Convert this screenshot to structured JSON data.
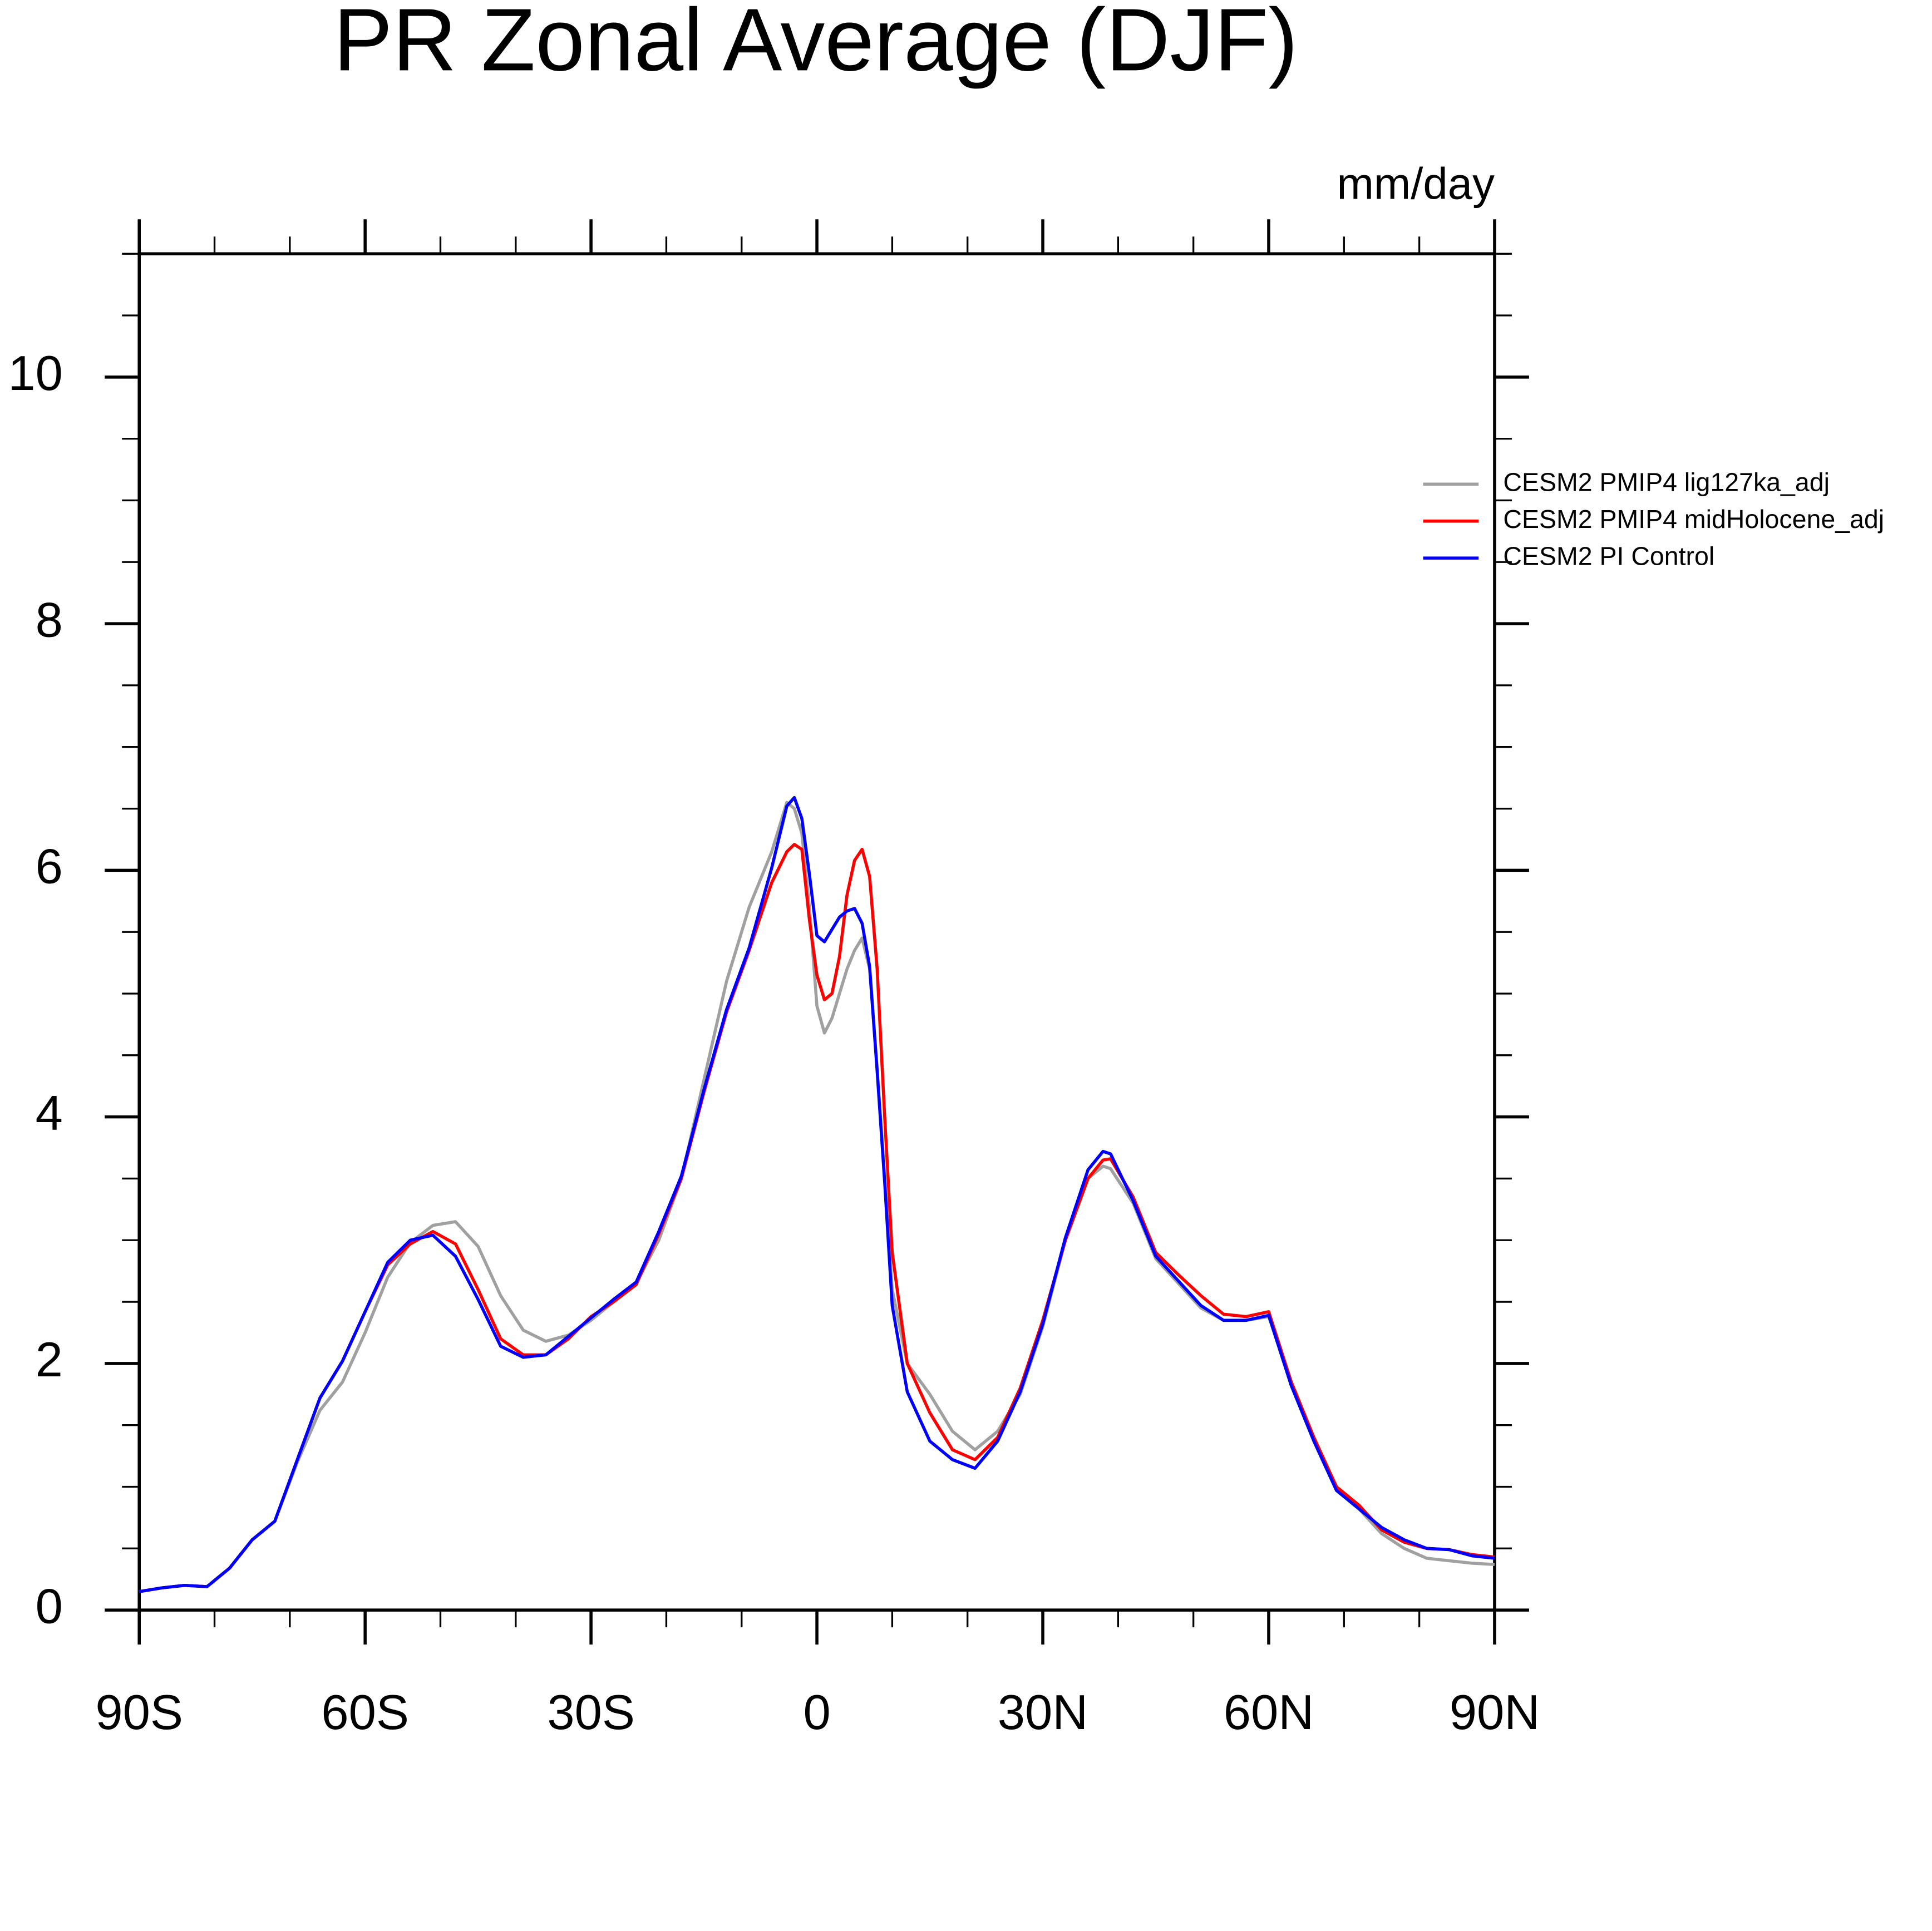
{
  "chart_data": {
    "type": "line",
    "title": "PR Zonal Average (DJF)",
    "units": "mm/day",
    "x": [
      -90,
      -87,
      -84,
      -81,
      -78,
      -75,
      -72,
      -69,
      -66,
      -63,
      -60,
      -57,
      -54,
      -51,
      -48,
      -45,
      -42,
      -39,
      -36,
      -33,
      -30,
      -27,
      -24,
      -21,
      -18,
      -15,
      -12,
      -9,
      -6,
      -4,
      -3,
      -2,
      -1,
      0,
      1,
      2,
      3,
      4,
      5,
      6,
      7,
      8,
      9,
      10,
      12,
      15,
      18,
      21,
      24,
      27,
      30,
      33,
      36,
      38,
      39,
      42,
      45,
      48,
      51,
      54,
      57,
      60,
      63,
      66,
      69,
      72,
      75,
      78,
      81,
      84,
      87,
      90
    ],
    "series": [
      {
        "name": "CESM2 PMIP4 lig127ka_adj",
        "color": "#a0a0a0",
        "values": [
          0.15,
          0.18,
          0.2,
          0.19,
          0.34,
          0.57,
          0.72,
          1.2,
          1.62,
          1.85,
          2.25,
          2.7,
          2.98,
          3.12,
          3.15,
          2.95,
          2.55,
          2.27,
          2.18,
          2.23,
          2.35,
          2.5,
          2.65,
          3.0,
          3.5,
          4.3,
          5.1,
          5.7,
          6.15,
          6.55,
          6.5,
          6.3,
          5.7,
          4.9,
          4.68,
          4.8,
          5.0,
          5.2,
          5.35,
          5.45,
          5.2,
          4.4,
          3.5,
          2.6,
          2.0,
          1.75,
          1.45,
          1.3,
          1.45,
          1.75,
          2.3,
          3.0,
          3.5,
          3.6,
          3.58,
          3.3,
          2.85,
          2.65,
          2.45,
          2.35,
          2.35,
          2.38,
          1.85,
          1.4,
          1.0,
          0.82,
          0.62,
          0.5,
          0.42,
          0.4,
          0.38,
          0.37
        ]
      },
      {
        "name": "CESM2 PMIP4 midHolocene_adj",
        "color": "#ff0000",
        "values": [
          0.15,
          0.18,
          0.2,
          0.19,
          0.34,
          0.57,
          0.72,
          1.22,
          1.72,
          2.02,
          2.42,
          2.8,
          2.97,
          3.07,
          2.97,
          2.6,
          2.2,
          2.07,
          2.07,
          2.2,
          2.38,
          2.5,
          2.64,
          3.05,
          3.5,
          4.2,
          4.85,
          5.35,
          5.9,
          6.15,
          6.21,
          6.17,
          5.6,
          5.15,
          4.95,
          5.0,
          5.3,
          5.8,
          6.08,
          6.17,
          5.95,
          5.2,
          4.0,
          2.9,
          2.0,
          1.6,
          1.3,
          1.22,
          1.4,
          1.8,
          2.35,
          3.0,
          3.5,
          3.65,
          3.66,
          3.35,
          2.9,
          2.72,
          2.55,
          2.4,
          2.38,
          2.42,
          1.85,
          1.4,
          1.0,
          0.85,
          0.65,
          0.55,
          0.5,
          0.49,
          0.45,
          0.43
        ]
      },
      {
        "name": "CESM2 PI Control",
        "color": "#0000ff",
        "values": [
          0.15,
          0.18,
          0.2,
          0.19,
          0.34,
          0.57,
          0.72,
          1.22,
          1.72,
          2.02,
          2.42,
          2.82,
          3.0,
          3.04,
          2.87,
          2.52,
          2.14,
          2.05,
          2.07,
          2.22,
          2.37,
          2.52,
          2.66,
          3.07,
          3.52,
          4.22,
          4.87,
          5.37,
          6.02,
          6.52,
          6.59,
          6.42,
          5.97,
          5.47,
          5.42,
          5.52,
          5.62,
          5.67,
          5.69,
          5.57,
          5.22,
          4.37,
          3.47,
          2.47,
          1.77,
          1.37,
          1.22,
          1.15,
          1.37,
          1.77,
          2.32,
          3.02,
          3.57,
          3.72,
          3.7,
          3.32,
          2.87,
          2.67,
          2.47,
          2.35,
          2.35,
          2.39,
          1.82,
          1.37,
          0.97,
          0.82,
          0.67,
          0.57,
          0.5,
          0.49,
          0.44,
          0.42
        ]
      }
    ],
    "xlim": [
      -90,
      90
    ],
    "ylim": [
      0,
      11
    ],
    "xticks": [
      {
        "value": -90,
        "label": "90S"
      },
      {
        "value": -60,
        "label": "60S"
      },
      {
        "value": -30,
        "label": "30S"
      },
      0,
      {
        "value": 30,
        "label": "30N"
      },
      {
        "value": 60,
        "label": "60N"
      },
      {
        "value": 90,
        "label": "90N"
      }
    ],
    "yticks": [
      0,
      2,
      4,
      6,
      8,
      10
    ],
    "xminorticks": [
      -80,
      -70,
      -50,
      -40,
      -20,
      -10,
      10,
      20,
      40,
      50,
      70,
      80
    ],
    "yminorticks": [
      1,
      3,
      5,
      7,
      9,
      11,
      0.5,
      1.5,
      2.5,
      3.5,
      4.5,
      5.5,
      6.5,
      7.5,
      8.5,
      9.5,
      10.5
    ],
    "legend": "top-right"
  }
}
